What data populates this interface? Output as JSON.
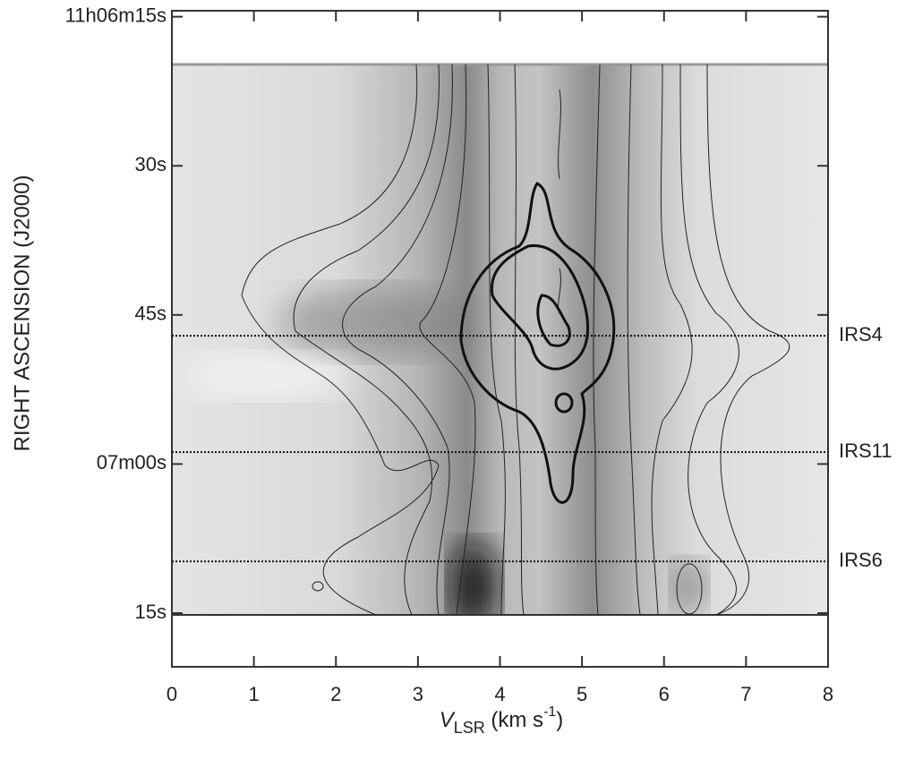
{
  "chart_data": {
    "type": "position-velocity",
    "x_label": {
      "main": "V",
      "sub": "LSR",
      "rest": " (km s",
      "sup": "-1",
      "end": ")"
    },
    "y_label": "RIGHT ASCENSION (J2000)",
    "xlim": [
      0,
      8
    ],
    "xticks": [
      0,
      1,
      2,
      3,
      4,
      5,
      6,
      7,
      8
    ],
    "ylim": [
      14.4,
      80.4
    ],
    "yticks": [
      {
        "value": 15,
        "label": "11h06m15s"
      },
      {
        "value": 30,
        "label": "30s"
      },
      {
        "value": 45,
        "label": "45s"
      },
      {
        "value": 60,
        "label": "07m00s"
      },
      {
        "value": 75,
        "label": "15s"
      }
    ],
    "annotations": [
      {
        "label": "IRS4",
        "y": 47.1
      },
      {
        "label": "IRS11",
        "y": 58.8
      },
      {
        "label": "IRS6",
        "y": 69.8
      }
    ]
  }
}
